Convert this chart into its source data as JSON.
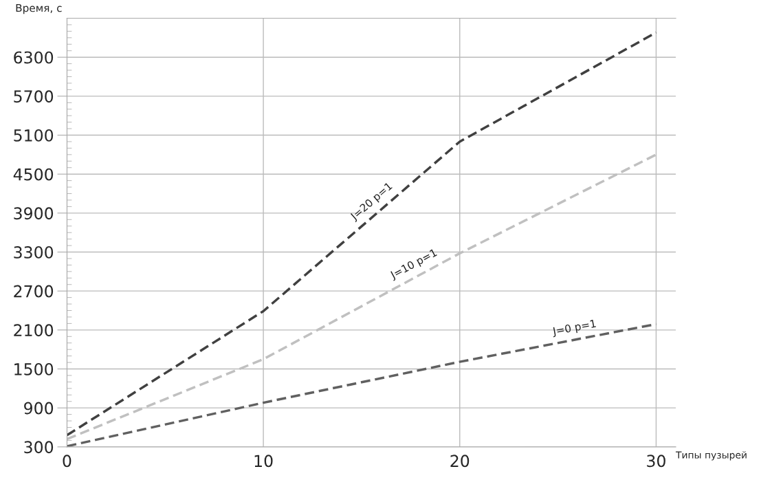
{
  "chart_data": {
    "type": "line",
    "xlabel": "Типы пузырей",
    "ylabel": "Время, с",
    "x": [
      0,
      10,
      20,
      30
    ],
    "series": [
      {
        "name": "J=20 p=1",
        "color": "#404040",
        "values": [
          480,
          2390,
          5000,
          6680
        ]
      },
      {
        "name": "J=10 p=1",
        "color": "#c0c0c0",
        "values": [
          420,
          1650,
          3280,
          4800
        ]
      },
      {
        "name": "J=0 p=1",
        "color": "#606060",
        "values": [
          310,
          980,
          1610,
          2190
        ]
      }
    ],
    "xlim": [
      0,
      31
    ],
    "xticks": [
      0,
      10,
      20,
      30
    ],
    "ylim": [
      300,
      6900
    ],
    "yticks": [
      300,
      900,
      1500,
      2100,
      2700,
      3300,
      3900,
      4500,
      5100,
      5700,
      6300
    ],
    "grid": true,
    "line_style": "dashed",
    "marker": "none",
    "legend": false
  }
}
